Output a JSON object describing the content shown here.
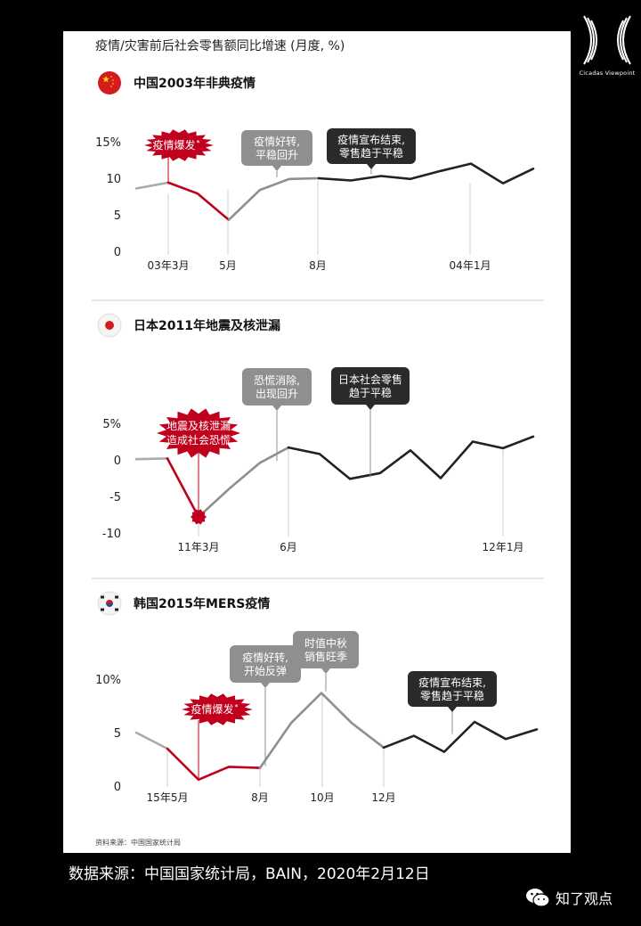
{
  "header": {
    "title": "疫情/灾害前后社会零售额同比增速 (月度, %)",
    "logo_text": "Cicadas Viewpoint"
  },
  "chart_data": [
    {
      "type": "line",
      "title": "中国2003年非典疫情",
      "flag": "cn-flag",
      "y_ticks": [
        "15%",
        "10",
        "5",
        "0"
      ],
      "y_tick_values": [
        15,
        10,
        5,
        0
      ],
      "ylim": [
        0,
        15
      ],
      "x_ticks": [
        {
          "label": "03年3月",
          "index": 2
        },
        {
          "label": "5月",
          "index": 4
        },
        {
          "label": "8月",
          "index": 7
        },
        {
          "label": "04年1月",
          "index": 12
        }
      ],
      "values": [
        8.6,
        9.4,
        7.9,
        4.3,
        8.4,
        9.9,
        10.0,
        9.7,
        10.3,
        9.9,
        11.0,
        12.0,
        9.3,
        11.3
      ],
      "x_index": [
        0.0,
        1.0,
        2.0,
        3.0,
        3.75,
        4.5,
        5.25,
        6.0,
        6.75,
        7.5,
        8.25,
        9.0,
        9.75,
        10.5
      ],
      "series_segments": [
        {
          "color": "#aaaaaa",
          "from": 0,
          "to": 1
        },
        {
          "color": "#c0001d",
          "from": 1,
          "to": 3
        },
        {
          "color": "#8f8f8f",
          "from": 3,
          "to": 6
        },
        {
          "color": "#222222",
          "from": 6,
          "to": 13
        }
      ],
      "annotations": [
        {
          "text": [
            "疫情爆发"
          ],
          "asterisk": "*",
          "style": "burst",
          "at_index": 1
        },
        {
          "text": [
            "疫情好转,",
            "平稳回升"
          ],
          "style": "gray",
          "at_index": 5
        },
        {
          "text": [
            "疫情宣布结束,",
            "零售趋于平稳"
          ],
          "style": "dark",
          "at_index": 8
        }
      ]
    },
    {
      "type": "line",
      "title": "日本2011年地震及核泄漏",
      "flag": "jp-flag",
      "y_ticks": [
        "5%",
        "0",
        "-5",
        "-10"
      ],
      "y_tick_values": [
        5,
        0,
        -5,
        -10
      ],
      "ylim": [
        -10,
        5
      ],
      "x_ticks": [
        {
          "label": "11年3月",
          "index": 2
        },
        {
          "label": "6月",
          "index": 5
        },
        {
          "label": "12年1月",
          "index": 12
        }
      ],
      "values": [
        0.1,
        0.2,
        -7.8,
        -4.0,
        -0.4,
        1.7,
        0.8,
        -2.6,
        -1.8,
        1.3,
        -2.5,
        2.5,
        1.6,
        3.2
      ],
      "series_segments": [
        {
          "color": "#aaaaaa",
          "from": 0,
          "to": 1
        },
        {
          "color": "#c0001d",
          "from": 1,
          "to": 2
        },
        {
          "color": "#8f8f8f",
          "from": 2,
          "to": 5
        },
        {
          "color": "#222222",
          "from": 5,
          "to": 13
        }
      ],
      "annotations": [
        {
          "text": [
            "地震及核泄漏",
            "造成社会恐慌"
          ],
          "style": "burst",
          "at_index": 2
        },
        {
          "text": [
            "恐慌消除,",
            "出现回升"
          ],
          "style": "gray",
          "at_index": 4
        },
        {
          "text": [
            "日本社会零售",
            "趋于平稳"
          ],
          "style": "dark",
          "at_index": 7
        }
      ]
    },
    {
      "type": "line",
      "title": "韩国2015年MERS疫情",
      "flag": "kr-flag",
      "y_ticks": [
        "10%",
        "5",
        "0"
      ],
      "y_tick_values": [
        10,
        5,
        0
      ],
      "ylim": [
        0,
        10
      ],
      "x_ticks": [
        {
          "label": "15年5月",
          "index": 1
        },
        {
          "label": "8月",
          "index": 4
        },
        {
          "label": "10月",
          "index": 6
        },
        {
          "label": "12月",
          "index": 8
        }
      ],
      "values": [
        5.0,
        3.5,
        0.6,
        1.8,
        1.7,
        5.9,
        8.7,
        5.9,
        3.6,
        4.7,
        3.2,
        6.0,
        4.4,
        5.3
      ],
      "series_segments": [
        {
          "color": "#aaaaaa",
          "from": 0,
          "to": 1
        },
        {
          "color": "#c0001d",
          "from": 1,
          "to": 4
        },
        {
          "color": "#8f8f8f",
          "from": 4,
          "to": 8
        },
        {
          "color": "#222222",
          "from": 8,
          "to": 13
        }
      ],
      "annotations": [
        {
          "text": [
            "疫情爆发"
          ],
          "asterisk": "*",
          "style": "burst",
          "at_index": 2
        },
        {
          "text": [
            "疫情好转,",
            "开始反弹"
          ],
          "style": "gray",
          "at_index": 4
        },
        {
          "text": [
            "时值中秋",
            "销售旺季"
          ],
          "style": "gray",
          "at_index": 6
        },
        {
          "text": [
            "疫情宣布结束,",
            "零售趋于平稳"
          ],
          "style": "dark",
          "at_index": 9
        }
      ]
    }
  ],
  "source_note": "资料来源：中国国家统计局",
  "footer": {
    "source": "数据来源：中国国家统计局，BAIN，2020年2月12日",
    "wechat_label": "知了观点"
  }
}
